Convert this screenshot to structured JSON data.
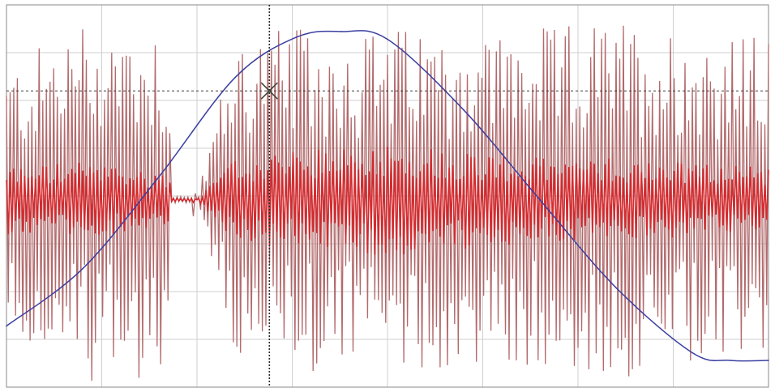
{
  "chart_data": {
    "type": "line",
    "title": "",
    "xlabel": "",
    "ylabel": "",
    "grid": true,
    "legend": "none",
    "x_range": [
      0,
      1
    ],
    "y_range": [
      -1,
      1
    ],
    "series": [
      {
        "role": "noisy signal",
        "color": "#d42a2e",
        "outer_color": "#b26a6c",
        "style": "dense vertical oscillation",
        "amplitude_envelope": [
          {
            "x": 0.0,
            "outer": 0.7,
            "inner": 0.18
          },
          {
            "x": 0.1,
            "outer": 0.95,
            "inner": 0.2
          },
          {
            "x": 0.2,
            "outer": 0.95,
            "inner": 0.15
          },
          {
            "x": 0.25,
            "outer": 0.0,
            "inner": 0.0
          },
          {
            "x": 0.3,
            "outer": 0.9,
            "inner": 0.22
          },
          {
            "x": 0.5,
            "outer": 0.9,
            "inner": 0.3
          },
          {
            "x": 0.7,
            "outer": 0.9,
            "inner": 0.22
          },
          {
            "x": 0.8,
            "outer": 0.95,
            "inner": 0.22
          },
          {
            "x": 1.0,
            "outer": 0.85,
            "inner": 0.18
          }
        ]
      },
      {
        "role": "smooth reference curve",
        "color": "#3b3fa0",
        "style": "sinusoid",
        "points": [
          {
            "x": 0.0,
            "y": -0.68
          },
          {
            "x": 0.1,
            "y": -0.38
          },
          {
            "x": 0.2,
            "y": 0.1
          },
          {
            "x": 0.3,
            "y": 0.62
          },
          {
            "x": 0.38,
            "y": 0.83
          },
          {
            "x": 0.44,
            "y": 0.86
          },
          {
            "x": 0.5,
            "y": 0.82
          },
          {
            "x": 0.6,
            "y": 0.45
          },
          {
            "x": 0.7,
            "y": -0.02
          },
          {
            "x": 0.8,
            "y": -0.48
          },
          {
            "x": 0.9,
            "y": -0.82
          },
          {
            "x": 0.95,
            "y": -0.86
          },
          {
            "x": 1.0,
            "y": -0.86
          }
        ]
      }
    ],
    "cursor": {
      "x": 0.345,
      "y": 0.55,
      "marker": "x",
      "vertical_line_color": "#2c2c2c",
      "horizontal_line_color": "#3a3a3a"
    }
  },
  "colors": {
    "background": "#ffffff",
    "grid": "#cfcfcf",
    "frame": "#888888"
  }
}
